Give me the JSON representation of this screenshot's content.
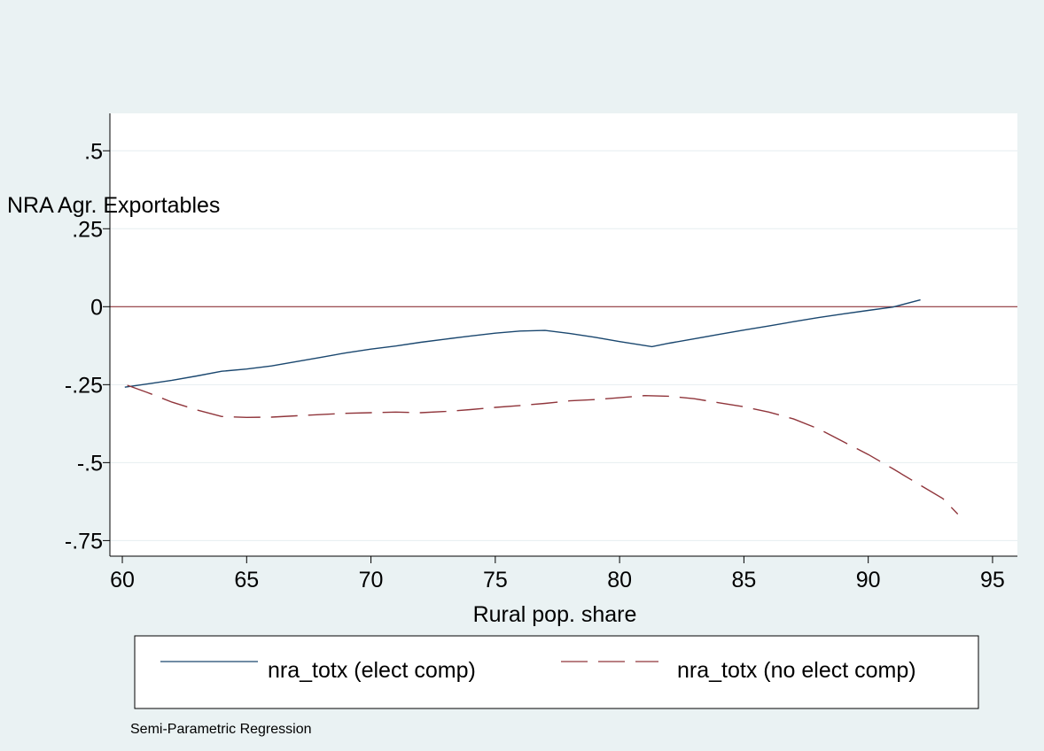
{
  "chart_data": {
    "type": "line",
    "title": "",
    "xlabel": "Rural pop. share",
    "ylabel": "NRA Agr. Exportables",
    "note": "Semi-Parametric Regression",
    "xlim": [
      59.5,
      96
    ],
    "ylim": [
      -0.8,
      0.62
    ],
    "xticks": [
      60,
      65,
      70,
      75,
      80,
      85,
      90,
      95
    ],
    "xtick_labels": [
      "60",
      "65",
      "70",
      "75",
      "80",
      "85",
      "90",
      "95"
    ],
    "yticks": [
      0.5,
      0.25,
      0,
      -0.25,
      -0.5,
      -0.75
    ],
    "ytick_labels": [
      ".5",
      ".25",
      "0",
      "-.25",
      "-.5",
      "-.75"
    ],
    "grid": true,
    "reference_line": {
      "y": 0,
      "color": "#90353b"
    },
    "legend_position": "bottom",
    "series": [
      {
        "name": "nra_totx (elect comp)",
        "color": "#1a476f",
        "dash": "solid",
        "x": [
          60.1,
          61,
          62,
          63,
          64,
          65,
          66,
          67,
          68,
          69,
          70,
          71,
          72,
          73,
          74,
          75,
          76,
          77,
          78,
          79,
          80,
          81.3,
          82,
          83,
          84,
          85,
          86,
          87,
          88,
          89,
          90,
          91,
          92.1
        ],
        "y": [
          -0.258,
          -0.248,
          -0.236,
          -0.222,
          -0.207,
          -0.2,
          -0.19,
          -0.176,
          -0.162,
          -0.148,
          -0.136,
          -0.126,
          -0.114,
          -0.104,
          -0.094,
          -0.085,
          -0.078,
          -0.076,
          -0.086,
          -0.098,
          -0.112,
          -0.128,
          -0.117,
          -0.103,
          -0.089,
          -0.075,
          -0.062,
          -0.048,
          -0.035,
          -0.023,
          -0.012,
          -0.001,
          0.022
        ]
      },
      {
        "name": "nra_totx (no elect comp)",
        "color": "#90353b",
        "dash": "long-dash",
        "x": [
          60.2,
          61,
          62,
          63,
          64,
          65,
          66,
          67,
          68,
          69,
          70,
          71,
          72,
          73,
          74,
          75,
          76,
          77,
          78,
          79,
          80,
          81,
          82,
          83,
          84,
          85,
          86,
          87,
          88,
          89,
          90,
          91,
          92,
          93,
          93.6
        ],
        "y": [
          -0.252,
          -0.275,
          -0.306,
          -0.331,
          -0.352,
          -0.355,
          -0.354,
          -0.35,
          -0.346,
          -0.342,
          -0.34,
          -0.338,
          -0.34,
          -0.336,
          -0.33,
          -0.323,
          -0.317,
          -0.31,
          -0.302,
          -0.298,
          -0.292,
          -0.285,
          -0.287,
          -0.295,
          -0.308,
          -0.321,
          -0.338,
          -0.36,
          -0.392,
          -0.433,
          -0.474,
          -0.52,
          -0.568,
          -0.615,
          -0.665
        ]
      }
    ]
  }
}
